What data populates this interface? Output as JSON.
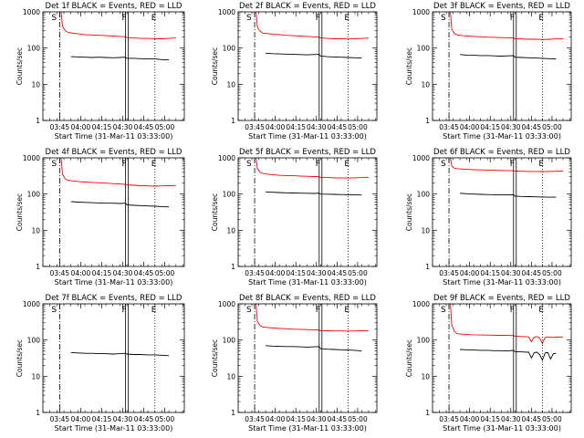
{
  "figure": {
    "background": "#ffffff",
    "axis_color": "#000000",
    "events_color": "#000000",
    "lld_color": "#ff0000"
  },
  "chart_data": [
    {
      "type": "line",
      "title": "Det 1f BLACK = Events, RED = LLD",
      "xlabel": "Start Time (31-Mar-11 03:33:00)",
      "ylabel": "Counts/sec",
      "xticks": [
        "03:45",
        "04:00",
        "04:15",
        "04:30",
        "04:45",
        "05:00"
      ],
      "yticks": [
        "1",
        "10",
        "100",
        "1000"
      ],
      "ylim": [
        1,
        1000
      ],
      "yscale": "log",
      "x_range_min": [
        0,
        101
      ],
      "grid": false,
      "markers": [
        {
          "label": "S",
          "x": 12
        },
        {
          "label": "F",
          "x": 59
        },
        {
          "label": "E",
          "x": 80
        }
      ],
      "series": [
        {
          "color": "#ff0000",
          "x": [
            13,
            14,
            16,
            18,
            22,
            26,
            30,
            35,
            40,
            45,
            50,
            55,
            59,
            60,
            65,
            70,
            75,
            80,
            85,
            90,
            95
          ],
          "y": [
            1000,
            400,
            300,
            270,
            255,
            245,
            235,
            230,
            225,
            220,
            215,
            210,
            205,
            195,
            190,
            185,
            185,
            180,
            180,
            185,
            190
          ]
        },
        {
          "color": "#000000",
          "x": [
            20,
            25,
            30,
            35,
            40,
            45,
            50,
            55,
            59,
            60,
            65,
            70,
            75,
            80,
            85,
            90
          ],
          "y": [
            58,
            57,
            56,
            55,
            56,
            55,
            54,
            55,
            56,
            52,
            52,
            51,
            50,
            50,
            48,
            47
          ]
        }
      ]
    },
    {
      "type": "line",
      "title": "Det 2f BLACK = Events, RED = LLD",
      "xlabel": "Start Time (31-Mar-11 03:33:00)",
      "ylabel": "Counts/sec",
      "xticks": [
        "03:45",
        "04:00",
        "04:15",
        "04:30",
        "04:45",
        "05:00"
      ],
      "yticks": [
        "1",
        "10",
        "100",
        "1000"
      ],
      "ylim": [
        1,
        1000
      ],
      "yscale": "log",
      "x_range_min": [
        0,
        101
      ],
      "grid": false,
      "markers": [
        {
          "label": "S",
          "x": 12
        },
        {
          "label": "F",
          "x": 59
        },
        {
          "label": "E",
          "x": 80
        }
      ],
      "series": [
        {
          "color": "#ff0000",
          "x": [
            13,
            14,
            16,
            18,
            22,
            26,
            30,
            35,
            40,
            45,
            50,
            55,
            59,
            60,
            65,
            70,
            75,
            80,
            85,
            90,
            95
          ],
          "y": [
            1000,
            380,
            290,
            260,
            250,
            240,
            235,
            225,
            220,
            215,
            210,
            205,
            200,
            190,
            185,
            180,
            180,
            178,
            180,
            185,
            188
          ]
        },
        {
          "color": "#000000",
          "x": [
            20,
            25,
            30,
            35,
            40,
            45,
            50,
            55,
            59,
            60,
            65,
            70,
            75,
            80,
            85,
            90
          ],
          "y": [
            72,
            70,
            69,
            68,
            67,
            66,
            65,
            66,
            67,
            60,
            58,
            57,
            56,
            55,
            54,
            53
          ]
        }
      ]
    },
    {
      "type": "line",
      "title": "Det 3f BLACK = Events, RED = LLD",
      "xlabel": "Start Time (31-Mar-11 03:33:00)",
      "ylabel": "Counts/sec",
      "xticks": [
        "03:45",
        "04:00",
        "04:15",
        "04:30",
        "04:45",
        "05:00"
      ],
      "yticks": [
        "1",
        "10",
        "100",
        "1000"
      ],
      "ylim": [
        1,
        1000
      ],
      "yscale": "log",
      "x_range_min": [
        0,
        101
      ],
      "grid": false,
      "markers": [
        {
          "label": "S",
          "x": 12
        },
        {
          "label": "F",
          "x": 59
        },
        {
          "label": "E",
          "x": 80
        }
      ],
      "series": [
        {
          "color": "#ff0000",
          "x": [
            13,
            14,
            16,
            18,
            22,
            26,
            30,
            35,
            40,
            45,
            50,
            55,
            59,
            60,
            65,
            70,
            75,
            80,
            85,
            90,
            95
          ],
          "y": [
            1000,
            330,
            250,
            230,
            220,
            215,
            210,
            205,
            200,
            198,
            195,
            192,
            190,
            180,
            178,
            175,
            175,
            172,
            175,
            178,
            180
          ]
        },
        {
          "color": "#000000",
          "x": [
            20,
            25,
            30,
            35,
            40,
            45,
            50,
            55,
            59,
            60,
            65,
            70,
            75,
            80,
            85,
            90
          ],
          "y": [
            66,
            64,
            63,
            62,
            62,
            61,
            60,
            61,
            62,
            56,
            55,
            54,
            53,
            52,
            51,
            50
          ]
        }
      ]
    },
    {
      "type": "line",
      "title": "Det 4f BLACK = Events, RED = LLD",
      "xlabel": "Start Time (31-Mar-11 03:33:00)",
      "ylabel": "Counts/sec",
      "xticks": [
        "03:45",
        "04:00",
        "04:15",
        "04:30",
        "04:45",
        "05:00"
      ],
      "yticks": [
        "1",
        "10",
        "100",
        "1000"
      ],
      "ylim": [
        1,
        1000
      ],
      "yscale": "log",
      "x_range_min": [
        0,
        101
      ],
      "grid": false,
      "markers": [
        {
          "label": "S",
          "x": 12
        },
        {
          "label": "F",
          "x": 59
        },
        {
          "label": "E",
          "x": 80
        }
      ],
      "series": [
        {
          "color": "#ff0000",
          "x": [
            13,
            14,
            16,
            18,
            22,
            26,
            30,
            35,
            40,
            45,
            50,
            55,
            59,
            60,
            65,
            70,
            75,
            80,
            85,
            90,
            95
          ],
          "y": [
            1000,
            350,
            260,
            240,
            230,
            220,
            215,
            210,
            205,
            200,
            195,
            190,
            185,
            178,
            175,
            170,
            168,
            165,
            168,
            170,
            172
          ]
        },
        {
          "color": "#000000",
          "x": [
            20,
            25,
            30,
            35,
            40,
            45,
            50,
            55,
            59,
            60,
            65,
            70,
            75,
            80,
            85,
            90
          ],
          "y": [
            62,
            60,
            59,
            58,
            57,
            56,
            56,
            55,
            56,
            50,
            49,
            48,
            47,
            46,
            45,
            44
          ]
        }
      ]
    },
    {
      "type": "line",
      "title": "Det 5f BLACK = Events, RED = LLD",
      "xlabel": "Start Time (31-Mar-11 03:33:00)",
      "ylabel": "Counts/sec",
      "xticks": [
        "03:45",
        "04:00",
        "04:15",
        "04:30",
        "04:45",
        "05:00"
      ],
      "yticks": [
        "1",
        "10",
        "100",
        "1000"
      ],
      "ylim": [
        1,
        1000
      ],
      "yscale": "log",
      "x_range_min": [
        0,
        101
      ],
      "grid": false,
      "markers": [
        {
          "label": "S",
          "x": 12
        },
        {
          "label": "F",
          "x": 59
        },
        {
          "label": "E",
          "x": 80
        }
      ],
      "series": [
        {
          "color": "#ff0000",
          "x": [
            13,
            14,
            16,
            18,
            22,
            26,
            30,
            35,
            40,
            45,
            50,
            55,
            59,
            60,
            65,
            70,
            75,
            80,
            85,
            90,
            95
          ],
          "y": [
            1000,
            500,
            400,
            370,
            350,
            340,
            330,
            325,
            320,
            315,
            310,
            305,
            300,
            290,
            285,
            280,
            280,
            278,
            280,
            285,
            290
          ]
        },
        {
          "color": "#000000",
          "x": [
            20,
            25,
            30,
            35,
            40,
            45,
            50,
            55,
            59,
            60,
            65,
            70,
            75,
            80,
            85,
            90
          ],
          "y": [
            115,
            112,
            110,
            108,
            107,
            106,
            105,
            104,
            106,
            100,
            99,
            98,
            97,
            96,
            95,
            94
          ]
        }
      ]
    },
    {
      "type": "line",
      "title": "Det 6f BLACK = Events, RED = LLD",
      "xlabel": "Start Time (31-Mar-11 03:33:00)",
      "ylabel": "Counts/sec",
      "xticks": [
        "03:45",
        "04:00",
        "04:15",
        "04:30",
        "04:45",
        "05:00"
      ],
      "yticks": [
        "1",
        "10",
        "100",
        "1000"
      ],
      "ylim": [
        1,
        1000
      ],
      "yscale": "log",
      "x_range_min": [
        0,
        101
      ],
      "grid": false,
      "markers": [
        {
          "label": "S",
          "x": 12
        },
        {
          "label": "F",
          "x": 59
        },
        {
          "label": "E",
          "x": 80
        }
      ],
      "series": [
        {
          "color": "#ff0000",
          "x": [
            13,
            14,
            16,
            18,
            22,
            26,
            30,
            35,
            40,
            45,
            50,
            55,
            59,
            60,
            65,
            70,
            75,
            80,
            85,
            90,
            95
          ],
          "y": [
            1000,
            600,
            520,
            500,
            490,
            480,
            470,
            465,
            460,
            455,
            450,
            445,
            440,
            430,
            425,
            420,
            420,
            418,
            420,
            425,
            430
          ]
        },
        {
          "color": "#000000",
          "x": [
            20,
            25,
            30,
            35,
            40,
            45,
            50,
            55,
            59,
            60,
            65,
            70,
            75,
            80,
            85,
            90
          ],
          "y": [
            105,
            102,
            100,
            98,
            97,
            96,
            95,
            95,
            96,
            88,
            86,
            85,
            84,
            83,
            82,
            82
          ]
        }
      ]
    },
    {
      "type": "line",
      "title": "Det 7f BLACK = Events, RED = LLD",
      "xlabel": "Start Time (31-Mar-11 03:33:00)",
      "ylabel": "Counts/sec",
      "xticks": [
        "03:45",
        "04:00",
        "04:15",
        "04:30",
        "04:45",
        "05:00"
      ],
      "yticks": [
        "1",
        "10",
        "100",
        "1000"
      ],
      "ylim": [
        1,
        1000
      ],
      "yscale": "log",
      "x_range_min": [
        0,
        101
      ],
      "grid": false,
      "markers": [
        {
          "label": "S",
          "x": 12
        },
        {
          "label": "F",
          "x": 59
        },
        {
          "label": "E",
          "x": 80
        }
      ],
      "series": [
        {
          "color": "#000000",
          "x": [
            20,
            25,
            30,
            35,
            40,
            45,
            50,
            55,
            59,
            60,
            65,
            70,
            75,
            80,
            85,
            90
          ],
          "y": [
            45,
            44,
            43,
            43,
            42,
            42,
            41,
            42,
            43,
            41,
            40,
            40,
            39,
            39,
            38,
            37
          ]
        }
      ]
    },
    {
      "type": "line",
      "title": "Det 8f BLACK = Events, RED = LLD",
      "xlabel": "Start Time (31-Mar-11 03:33:00)",
      "ylabel": "Counts/sec",
      "xticks": [
        "03:45",
        "04:00",
        "04:15",
        "04:30",
        "04:45",
        "05:00"
      ],
      "yticks": [
        "1",
        "10",
        "100",
        "1000"
      ],
      "ylim": [
        1,
        1000
      ],
      "yscale": "log",
      "x_range_min": [
        0,
        101
      ],
      "grid": false,
      "markers": [
        {
          "label": "S",
          "x": 12
        },
        {
          "label": "F",
          "x": 59
        },
        {
          "label": "E",
          "x": 80
        }
      ],
      "series": [
        {
          "color": "#ff0000",
          "x": [
            13,
            14,
            16,
            18,
            22,
            26,
            30,
            35,
            40,
            45,
            50,
            55,
            59,
            60,
            65,
            70,
            75,
            80,
            85,
            90,
            95
          ],
          "y": [
            1000,
            320,
            250,
            230,
            220,
            215,
            210,
            205,
            200,
            198,
            195,
            192,
            190,
            182,
            180,
            178,
            178,
            176,
            178,
            180,
            182
          ]
        },
        {
          "color": "#000000",
          "x": [
            20,
            25,
            30,
            35,
            40,
            45,
            50,
            55,
            59,
            60,
            65,
            70,
            75,
            80,
            85,
            90
          ],
          "y": [
            70,
            68,
            67,
            66,
            66,
            65,
            64,
            65,
            66,
            58,
            56,
            55,
            54,
            53,
            52,
            50
          ]
        }
      ]
    },
    {
      "type": "line",
      "title": "Det 9f BLACK = Events, RED = LLD",
      "xlabel": "Start Time (31-Mar-11 03:33:00)",
      "ylabel": "Counts/sec",
      "xticks": [
        "03:45",
        "04:00",
        "04:15",
        "04:30",
        "04:45",
        "05:00"
      ],
      "yticks": [
        "1",
        "10",
        "100",
        "1000"
      ],
      "ylim": [
        1,
        1000
      ],
      "yscale": "log",
      "x_range_min": [
        0,
        101
      ],
      "grid": false,
      "markers": [
        {
          "label": "S",
          "x": 12
        },
        {
          "label": "F",
          "x": 59
        },
        {
          "label": "E",
          "x": 80
        }
      ],
      "series": [
        {
          "color": "#ff0000",
          "x": [
            13,
            14,
            16,
            18,
            22,
            26,
            30,
            35,
            40,
            45,
            50,
            55,
            59,
            60,
            65,
            70,
            72,
            74,
            76,
            78,
            80,
            82,
            84,
            86,
            88,
            90,
            95
          ],
          "y": [
            1000,
            260,
            170,
            150,
            145,
            142,
            140,
            138,
            137,
            136,
            135,
            134,
            133,
            128,
            125,
            122,
            90,
            120,
            125,
            115,
            80,
            118,
            122,
            120,
            118,
            120,
            122
          ]
        },
        {
          "color": "#000000",
          "x": [
            20,
            25,
            30,
            35,
            40,
            45,
            50,
            55,
            59,
            60,
            65,
            70,
            72,
            74,
            76,
            78,
            80,
            82,
            84,
            86,
            88,
            90
          ],
          "y": [
            55,
            54,
            53,
            52,
            52,
            51,
            51,
            50,
            52,
            48,
            47,
            46,
            32,
            45,
            46,
            40,
            28,
            44,
            45,
            30,
            42,
            43
          ]
        }
      ]
    }
  ]
}
